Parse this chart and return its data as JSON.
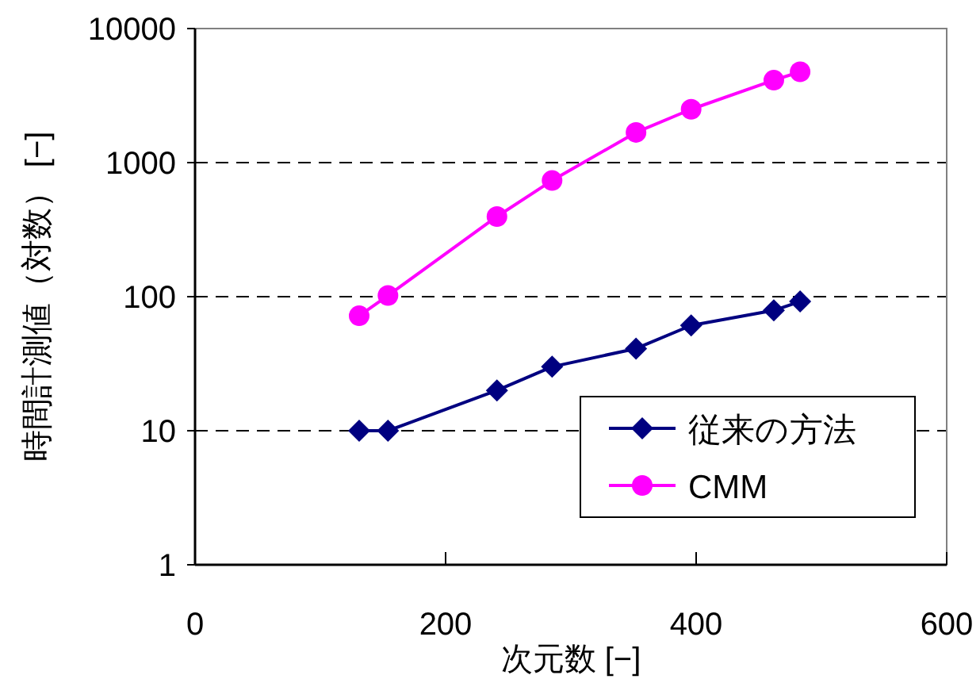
{
  "chart_data": {
    "type": "line",
    "xlabel": "次元数 [−]",
    "ylabel": "時間計測値（対数） [−]",
    "xlim": [
      0,
      600
    ],
    "xticks": [
      0,
      200,
      400,
      600
    ],
    "ylim": [
      1,
      10000
    ],
    "yticks": [
      1,
      10,
      100,
      1000,
      10000
    ],
    "log": "y",
    "grid": "y",
    "legend": "bottom right",
    "line_style": "solid",
    "series": [
      {
        "name": "従来の方法",
        "color": "#000080",
        "marker": "diamond",
        "x": [
          131,
          154,
          241,
          285,
          352,
          396,
          462,
          483
        ],
        "values": [
          10,
          10,
          20,
          30,
          41,
          61,
          79,
          92
        ]
      },
      {
        "name": "CMM",
        "color": "#ff00ff",
        "marker": "circle",
        "x": [
          131,
          154,
          241,
          285,
          352,
          396,
          462,
          483
        ],
        "values": [
          72,
          102,
          396,
          735,
          1680,
          2500,
          4120,
          4760
        ]
      }
    ]
  }
}
